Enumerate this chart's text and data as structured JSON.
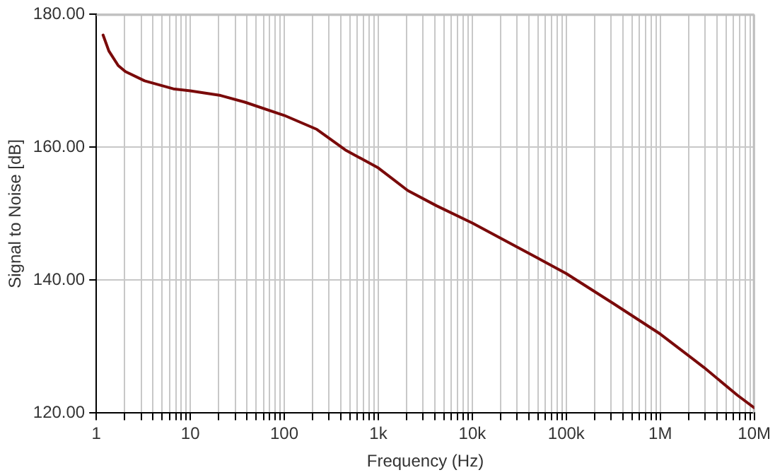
{
  "chart_data": {
    "type": "line",
    "xlabel": "Frequency (Hz)",
    "ylabel": "Signal to Noise [dB]",
    "log": "x",
    "grid": true,
    "legend": false,
    "marker": "none",
    "line_style": "solid",
    "xlim": [
      1,
      10000000
    ],
    "xticks": [
      {
        "value": 1,
        "label": "1"
      },
      {
        "value": 2,
        "label": null
      },
      {
        "value": 3,
        "label": null
      },
      {
        "value": 4,
        "label": null
      },
      {
        "value": 5,
        "label": null
      },
      {
        "value": 6,
        "label": null
      },
      {
        "value": 7,
        "label": null
      },
      {
        "value": 8,
        "label": null
      },
      {
        "value": 9,
        "label": null
      },
      {
        "value": 10,
        "label": "10"
      },
      {
        "value": 20,
        "label": null
      },
      {
        "value": 30,
        "label": null
      },
      {
        "value": 40,
        "label": null
      },
      {
        "value": 50,
        "label": null
      },
      {
        "value": 60,
        "label": null
      },
      {
        "value": 70,
        "label": null
      },
      {
        "value": 80,
        "label": null
      },
      {
        "value": 90,
        "label": null
      },
      {
        "value": 100,
        "label": "100"
      },
      {
        "value": 200,
        "label": null
      },
      {
        "value": 300,
        "label": null
      },
      {
        "value": 400,
        "label": null
      },
      {
        "value": 500,
        "label": null
      },
      {
        "value": 600,
        "label": null
      },
      {
        "value": 700,
        "label": null
      },
      {
        "value": 800,
        "label": null
      },
      {
        "value": 900,
        "label": null
      },
      {
        "value": 1000,
        "label": "1k"
      },
      {
        "value": 2000,
        "label": null
      },
      {
        "value": 3000,
        "label": null
      },
      {
        "value": 4000,
        "label": null
      },
      {
        "value": 5000,
        "label": null
      },
      {
        "value": 6000,
        "label": null
      },
      {
        "value": 7000,
        "label": null
      },
      {
        "value": 8000,
        "label": null
      },
      {
        "value": 9000,
        "label": null
      },
      {
        "value": 10000,
        "label": "10k"
      },
      {
        "value": 20000,
        "label": null
      },
      {
        "value": 30000,
        "label": null
      },
      {
        "value": 40000,
        "label": null
      },
      {
        "value": 50000,
        "label": null
      },
      {
        "value": 60000,
        "label": null
      },
      {
        "value": 70000,
        "label": null
      },
      {
        "value": 80000,
        "label": null
      },
      {
        "value": 90000,
        "label": null
      },
      {
        "value": 100000,
        "label": "100k"
      },
      {
        "value": 200000,
        "label": null
      },
      {
        "value": 300000,
        "label": null
      },
      {
        "value": 400000,
        "label": null
      },
      {
        "value": 500000,
        "label": null
      },
      {
        "value": 600000,
        "label": null
      },
      {
        "value": 700000,
        "label": null
      },
      {
        "value": 800000,
        "label": null
      },
      {
        "value": 900000,
        "label": null
      },
      {
        "value": 1000000,
        "label": "1M"
      },
      {
        "value": 2000000,
        "label": null
      },
      {
        "value": 3000000,
        "label": null
      },
      {
        "value": 4000000,
        "label": null
      },
      {
        "value": 5000000,
        "label": null
      },
      {
        "value": 6000000,
        "label": null
      },
      {
        "value": 7000000,
        "label": null
      },
      {
        "value": 8000000,
        "label": null
      },
      {
        "value": 9000000,
        "label": null
      },
      {
        "value": 10000000,
        "label": "10M"
      }
    ],
    "ylim": [
      120,
      180
    ],
    "yticks": [
      {
        "value": 120,
        "label": "120.00"
      },
      {
        "value": 140,
        "label": "140.00"
      },
      {
        "value": 160,
        "label": "160.00"
      },
      {
        "value": 180,
        "label": "180.00"
      }
    ],
    "series": [
      {
        "color": "#7a0a0a",
        "x": [
          1.18,
          1.36,
          1.71,
          2.04,
          3.27,
          6.6,
          10,
          21,
          38,
          100,
          222,
          447,
          1000,
          2056,
          4170,
          10000,
          30000,
          100000,
          316000,
          1000000,
          2900000,
          6600000,
          10000000
        ],
        "values": [
          176.9,
          174.5,
          172.3,
          171.4,
          170.0,
          168.8,
          168.5,
          167.8,
          166.8,
          164.8,
          162.7,
          159.6,
          156.9,
          153.5,
          151.2,
          148.6,
          145.0,
          141.0,
          136.5,
          131.9,
          126.9,
          122.7,
          120.8
        ]
      }
    ]
  }
}
